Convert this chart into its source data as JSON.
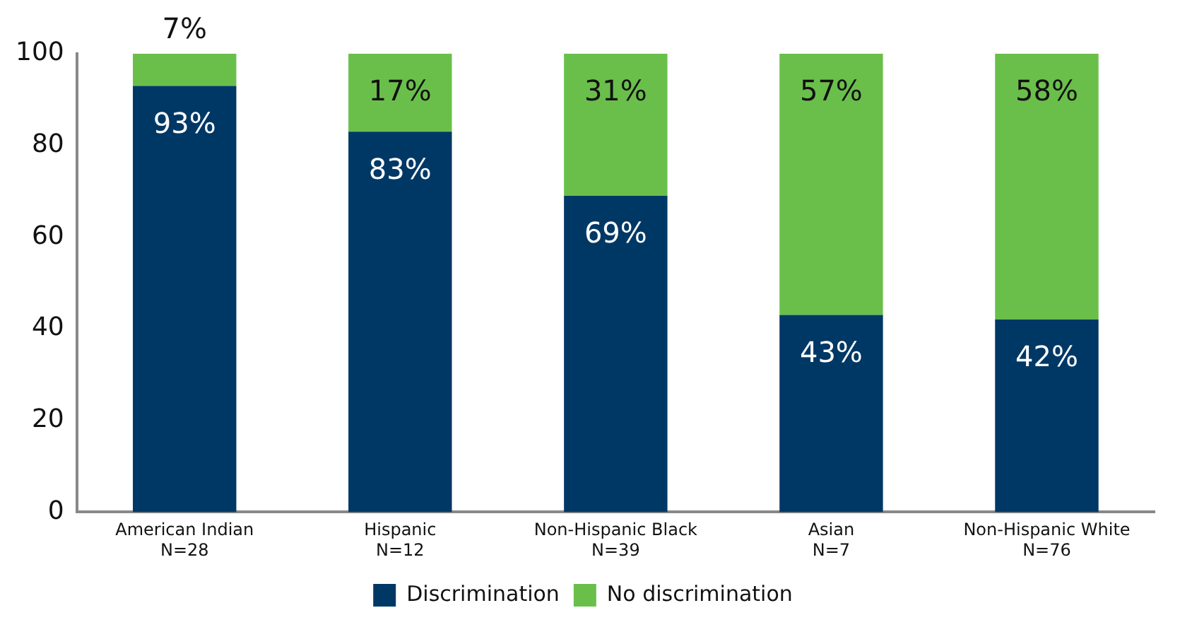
{
  "chart_data": {
    "type": "bar",
    "stacked": true,
    "categories": [
      "American Indian\nN=28",
      "Hispanic\nN=12",
      "Non-Hispanic Black\nN=39",
      "Asian\nN=7",
      "Non-Hispanic White\nN=76"
    ],
    "series": [
      {
        "name": "Discrimination",
        "color": "#003865",
        "values": [
          93,
          83,
          69,
          43,
          42
        ],
        "value_labels": [
          "93%",
          "83%",
          "69%",
          "43%",
          "42%"
        ]
      },
      {
        "name": "No discrimination",
        "color": "#6abf4b",
        "values": [
          7,
          17,
          31,
          57,
          58
        ],
        "value_labels": [
          "7%",
          "17%",
          "31%",
          "57%",
          "58%"
        ]
      }
    ],
    "ylim": [
      0,
      100
    ],
    "yticks": [
      0,
      20,
      40,
      60,
      80,
      100
    ],
    "grid": false,
    "legend": "bottom"
  }
}
